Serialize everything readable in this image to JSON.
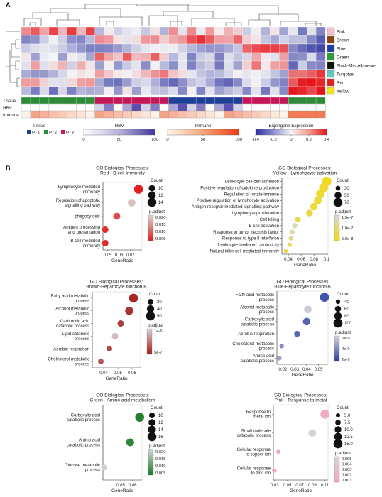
{
  "panel_labels": {
    "a": "A",
    "b": "B"
  },
  "heatmap": {
    "rows": [
      "Pink",
      "Brown",
      "Blue",
      "Green",
      "Black-Miscellaneous",
      "Turqoise",
      "Red",
      "Yellow"
    ],
    "row_colors": [
      "#f6c1cf",
      "#8b4513",
      "#1f3fa8",
      "#2e9d3a",
      "#111111",
      "#5fc6c4",
      "#e0201b",
      "#f7e21a"
    ],
    "track_labels": [
      "Tissue",
      "HBV",
      "Immune"
    ],
    "legend": {
      "tissue_title": "Tissue",
      "tissue_items": [
        {
          "label": "PT1",
          "color": "#1f3e96"
        },
        {
          "label": "PT2",
          "color": "#2e8b3a"
        },
        {
          "label": "PT3",
          "color": "#c2185b"
        }
      ],
      "hbv_title": "HBV",
      "hbv_ticks": [
        "0",
        "50",
        "100"
      ],
      "immune_title": "Immune",
      "immune_ticks": [
        "0",
        "50",
        "100"
      ],
      "eig_title": "Eigengene Expression",
      "eig_ticks": [
        "-0.4",
        "-0.2",
        "0",
        "0.2",
        "0.4"
      ]
    }
  },
  "chart_data": [
    {
      "type": "scatter",
      "title": "GO Biological Processes:\nRed - B cell Immunity",
      "xlabel": "GeneRatio",
      "xticks": [
        0.05,
        0.06,
        0.07
      ],
      "xlim": [
        0.046,
        0.08
      ],
      "categories": [
        "Lymphocyte mediated\nimmunity",
        "Regulation of apoptotic\nsignalling pathway",
        "phagocytosis",
        "Antigen processing\nand presentation",
        "B cell mediated\nimmunity"
      ],
      "x": [
        0.077,
        0.071,
        0.058,
        0.048,
        0.048
      ],
      "count": [
        14,
        12,
        11,
        10,
        10
      ],
      "p_adjust": [
        0.004,
        0.019,
        0.008,
        0.005,
        0.005
      ],
      "count_legend": {
        "title": "Count",
        "values": [
          10,
          12,
          14
        ]
      },
      "color_legend": {
        "title": "p.adjust",
        "ticks": [
          "0.020",
          "0.015",
          "0.010",
          "0.005"
        ],
        "range": [
          0.004,
          0.021
        ],
        "low": "#e02020",
        "high": "#d6d6d6"
      }
    },
    {
      "type": "scatter",
      "title": "GO Biological Processes:\nYellow - Lymphocyte activation",
      "xlabel": "GeneRatio",
      "xticks": [
        0.04,
        0.06,
        0.08,
        0.1
      ],
      "xlim": [
        0.03,
        0.102
      ],
      "categories": [
        "Leukocyte cell-cell adhesion",
        "Positive regulation of cytokine production",
        "Regulation of innate immune",
        "Positive regulation of lymphocyte activation",
        "Antigen receptor-mediated signalling pathway",
        "Lymphocyte proliferation",
        "Cell killing",
        "B cell activation",
        "Response to tumor necrosis factor",
        "Response to type II interferon",
        "Leukocyte mediated cytotoxicity",
        "Natural killer cell mediated immunity"
      ],
      "x": [
        0.1,
        0.095,
        0.09,
        0.086,
        0.08,
        0.073,
        0.055,
        0.05,
        0.046,
        0.044,
        0.042,
        0.036
      ],
      "count": [
        75,
        70,
        65,
        60,
        55,
        50,
        40,
        35,
        32,
        30,
        28,
        25
      ],
      "p_adjust": [
        1e-08,
        2e-08,
        2e-08,
        3e-08,
        3e-08,
        4e-08,
        5e-08,
        1.4e-07,
        1.2e-07,
        1e-07,
        6e-08,
        4e-08
      ],
      "count_legend": {
        "title": "Count",
        "values": [
          30,
          50,
          70
        ]
      },
      "color_legend": {
        "title": "p.adjust",
        "ticks": [
          "1.5e-7",
          "1.0e-7",
          "5.0e-8"
        ],
        "range": [
          0,
          1.6e-07
        ],
        "low": "#f0dc16",
        "high": "#d6d6d6"
      }
    },
    {
      "type": "scatter",
      "title": "GO Biological Processes:\nBrown-Hepatocyte function B",
      "xlabel": "GeneRatio",
      "xticks": [
        0.04,
        0.05,
        0.06
      ],
      "xlim": [
        0.032,
        0.066
      ],
      "categories": [
        "Fatty acid metabolic\nprocess",
        "Alcohol metabolic\nprocess",
        "Carboxylic acid\ncatabolic process",
        "Lipid catabolic\nprocess",
        "Aerobic respiration",
        "Cholesterol metabolic\nprocess"
      ],
      "x": [
        0.061,
        0.058,
        0.052,
        0.048,
        0.044,
        0.038
      ],
      "count": [
        50,
        45,
        35,
        35,
        30,
        30
      ],
      "p_adjust": [
        2e-07,
        3e-07,
        4e-07,
        1.5e-06,
        5e-07,
        6e-07
      ],
      "count_legend": {
        "title": "Count",
        "values": [
          30,
          40,
          50
        ]
      },
      "color_legend": {
        "title": "p.adjust",
        "ticks": [
          "1e-6",
          "5e-7"
        ],
        "range": [
          1e-07,
          1.7e-06
        ],
        "low": "#a31b1b",
        "high": "#d6d6d6"
      }
    },
    {
      "type": "scatter",
      "title": "GO Biological Processes\nBlue-Hepatocyte function A",
      "xlabel": "GeneRatio",
      "xticks": [
        0.02,
        0.03,
        0.04,
        0.05
      ],
      "xlim": [
        0.015,
        0.058
      ],
      "categories": [
        "Fatty acid metabolic\nprocess",
        "Alcohol metabolic\nprocess",
        "Carboxylic acid\ncatabolic process",
        "Aerobic respiration",
        "Cholesterol metabolic\nprocess",
        "Amino acid\ncatabolic process"
      ],
      "x": [
        0.055,
        0.041,
        0.04,
        0.032,
        0.019,
        0.017
      ],
      "count": [
        100,
        80,
        80,
        60,
        40,
        40
      ],
      "p_adjust": [
        1e-09,
        7e-09,
        2e-09,
        2e-09,
        4e-09,
        5e-09
      ],
      "count_legend": {
        "title": "Count",
        "values": [
          40,
          60,
          80,
          100
        ]
      },
      "color_legend": {
        "title": "p.adjust",
        "ticks": [
          "6e-9",
          "4e-9",
          "2e-9"
        ],
        "range": [
          0,
          7.5e-09
        ],
        "low": "#2b3ca6",
        "high": "#d6d6d6"
      }
    },
    {
      "type": "scatter",
      "title": "GO Biological Processes:\nGreen - Amino acid metabolism",
      "xlabel": "GeneRatio",
      "xticks": [
        0.05,
        0.06
      ],
      "xlim": [
        0.035,
        0.068
      ],
      "categories": [
        "Carboxylic acid\ncatabolic process",
        "Amino acid\ncatabolic process",
        "Glucose metabolic\nprocess"
      ],
      "x": [
        0.066,
        0.058,
        0.036
      ],
      "count": [
        16,
        14,
        10
      ],
      "p_adjust": [
        0.003,
        0.004,
        0.02
      ],
      "count_legend": {
        "title": "Count",
        "values": [
          10,
          12,
          14,
          16
        ]
      },
      "color_legend": {
        "title": "p.adjust",
        "ticks": [
          "0.020",
          "0.015",
          "0.010",
          "0.005"
        ],
        "range": [
          0.002,
          0.021
        ],
        "low": "#1a7a26",
        "high": "#d6d6d6"
      }
    },
    {
      "type": "scatter",
      "title": "GO Biological Processes:\nPink - Response to metal",
      "xlabel": "GeneRatio",
      "xticks": [
        0.03,
        0.05,
        0.07,
        0.09,
        0.11
      ],
      "xlim": [
        0.028,
        0.115
      ],
      "categories": [
        "Response to\nmetal ion",
        "Small molecule\ncatabolic process",
        "Cellular response\nto copper ion",
        "Cellular response\nto zinc ion"
      ],
      "x": [
        0.11,
        0.09,
        0.036,
        0.03
      ],
      "count": [
        15,
        12,
        5,
        5
      ],
      "p_adjust": [
        0.001,
        0.0052,
        0.0008,
        0.0006
      ],
      "count_legend": {
        "title": "Count",
        "values": [
          5.0,
          7.5,
          10.0,
          12.5,
          15.0
        ]
      },
      "color_legend": {
        "title": "p.adjust",
        "ticks": [
          "0.005",
          "0.004",
          "0.003",
          "0.002",
          "0.001"
        ],
        "range": [
          0.0004,
          0.0055
        ],
        "low": "#f4a6bf",
        "high": "#d6d6d6"
      }
    }
  ]
}
